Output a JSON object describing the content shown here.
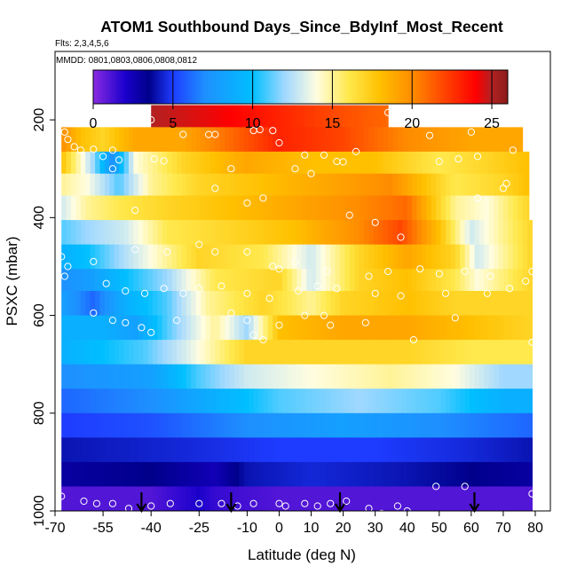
{
  "chart_data": {
    "type": "heatmap",
    "title": "ATOM1 Southbound Days_Since_BdyInf_Most_Recent",
    "subtitle_flights": "Flts: 2,3,4,5,6",
    "subtitle_dates": "MMDD: 0801,0803,0806,0808,0812",
    "xlabel": "Latitude (deg N)",
    "ylabel": "PSXC (mbar)",
    "xlim": [
      -70,
      80
    ],
    "ylim": [
      1000,
      100
    ],
    "x_ticks": [
      -70,
      -55,
      -40,
      -25,
      -10,
      0,
      10,
      20,
      30,
      40,
      50,
      60,
      70,
      80
    ],
    "y_ticks": [
      200,
      400,
      600,
      800,
      1000
    ],
    "colorbar": {
      "min": 0,
      "max": 26,
      "ticks": [
        0,
        5,
        10,
        15,
        20,
        25
      ],
      "stops": [
        {
          "v": 0,
          "c": "#8a2be2"
        },
        {
          "v": 2,
          "c": "#1a00cc"
        },
        {
          "v": 3.5,
          "c": "#00008b"
        },
        {
          "v": 5,
          "c": "#1e3cff"
        },
        {
          "v": 7,
          "c": "#1e90ff"
        },
        {
          "v": 10,
          "c": "#00bfff"
        },
        {
          "v": 12,
          "c": "#a0d8ff"
        },
        {
          "v": 14,
          "c": "#fffde0"
        },
        {
          "v": 16,
          "c": "#ffe94d"
        },
        {
          "v": 18,
          "c": "#ffc000"
        },
        {
          "v": 20,
          "c": "#ff8c00"
        },
        {
          "v": 22,
          "c": "#ff4500"
        },
        {
          "v": 24,
          "c": "#ff0000"
        },
        {
          "v": 25,
          "c": "#b22222"
        },
        {
          "v": 26,
          "c": "#8b1a1a"
        }
      ]
    },
    "layers": [
      {
        "p0": 170,
        "p1": 215,
        "x0": -40,
        "x1": 34,
        "values": [
          [
            -40,
            25
          ],
          [
            -15,
            24
          ],
          [
            0,
            23
          ],
          [
            15,
            22
          ],
          [
            34,
            21
          ]
        ]
      },
      {
        "p0": 215,
        "p1": 265,
        "x0": -68,
        "x1": 76,
        "values": [
          [
            -68,
            20
          ],
          [
            -62,
            18
          ],
          [
            -55,
            17
          ],
          [
            -45,
            19
          ],
          [
            -30,
            19
          ],
          [
            -15,
            21
          ],
          [
            0,
            23
          ],
          [
            20,
            22
          ],
          [
            40,
            20
          ],
          [
            60,
            19
          ],
          [
            76,
            19
          ]
        ]
      },
      {
        "p0": 265,
        "p1": 310,
        "x0": -68,
        "x1": 78,
        "values": [
          [
            -68,
            18
          ],
          [
            -58,
            12
          ],
          [
            -52,
            7
          ],
          [
            -45,
            14
          ],
          [
            -30,
            17
          ],
          [
            -10,
            19
          ],
          [
            10,
            18
          ],
          [
            30,
            18
          ],
          [
            50,
            16
          ],
          [
            65,
            17
          ],
          [
            78,
            18
          ]
        ]
      },
      {
        "p0": 310,
        "p1": 355,
        "x0": -68,
        "x1": 78,
        "values": [
          [
            -68,
            15
          ],
          [
            -60,
            14
          ],
          [
            -50,
            11
          ],
          [
            -40,
            15
          ],
          [
            -25,
            17
          ],
          [
            -5,
            18
          ],
          [
            15,
            19
          ],
          [
            35,
            20
          ],
          [
            55,
            16
          ],
          [
            70,
            17
          ],
          [
            78,
            18
          ]
        ]
      },
      {
        "p0": 355,
        "p1": 405,
        "x0": -68,
        "x1": 78,
        "values": [
          [
            -68,
            13
          ],
          [
            -60,
            15
          ],
          [
            -50,
            16
          ],
          [
            -35,
            17
          ],
          [
            -15,
            18
          ],
          [
            5,
            19
          ],
          [
            25,
            20
          ],
          [
            40,
            21
          ],
          [
            55,
            15
          ],
          [
            65,
            14
          ],
          [
            78,
            17
          ]
        ]
      },
      {
        "p0": 405,
        "p1": 455,
        "x0": -68,
        "x1": 79,
        "values": [
          [
            -68,
            11
          ],
          [
            -60,
            12
          ],
          [
            -48,
            13
          ],
          [
            -35,
            16
          ],
          [
            -15,
            17
          ],
          [
            5,
            18
          ],
          [
            25,
            20
          ],
          [
            38,
            22
          ],
          [
            50,
            18
          ],
          [
            60,
            13
          ],
          [
            79,
            17
          ]
        ]
      },
      {
        "p0": 455,
        "p1": 505,
        "x0": -68,
        "x1": 79,
        "values": [
          [
            -68,
            9
          ],
          [
            -60,
            10
          ],
          [
            -50,
            12
          ],
          [
            -40,
            14
          ],
          [
            -25,
            17
          ],
          [
            -5,
            16
          ],
          [
            10,
            13
          ],
          [
            25,
            17
          ],
          [
            40,
            19
          ],
          [
            55,
            17
          ],
          [
            62,
            13
          ],
          [
            79,
            17
          ]
        ]
      },
      {
        "p0": 505,
        "p1": 550,
        "x0": -68,
        "x1": 79,
        "values": [
          [
            -68,
            7
          ],
          [
            -58,
            8
          ],
          [
            -48,
            10
          ],
          [
            -35,
            12
          ],
          [
            -20,
            16
          ],
          [
            0,
            17
          ],
          [
            10,
            13
          ],
          [
            25,
            17
          ],
          [
            40,
            18
          ],
          [
            55,
            16
          ],
          [
            62,
            14
          ],
          [
            79,
            17
          ]
        ]
      },
      {
        "p0": 550,
        "p1": 600,
        "x0": -68,
        "x1": 79,
        "values": [
          [
            -68,
            8
          ],
          [
            -58,
            6
          ],
          [
            -48,
            9
          ],
          [
            -35,
            11
          ],
          [
            -22,
            15
          ],
          [
            -5,
            17
          ],
          [
            10,
            15
          ],
          [
            20,
            17
          ],
          [
            40,
            18
          ],
          [
            55,
            17
          ],
          [
            79,
            17
          ]
        ]
      },
      {
        "p0": 600,
        "p1": 650,
        "x0": -68,
        "x1": 79,
        "values": [
          [
            -68,
            9
          ],
          [
            -55,
            9
          ],
          [
            -45,
            8
          ],
          [
            -35,
            11
          ],
          [
            -20,
            15
          ],
          [
            -10,
            12
          ],
          [
            0,
            18
          ],
          [
            20,
            19
          ],
          [
            40,
            19
          ],
          [
            60,
            18
          ],
          [
            79,
            17
          ]
        ]
      },
      {
        "p0": 650,
        "p1": 700,
        "x0": -68,
        "x1": 79,
        "values": [
          [
            -68,
            9
          ],
          [
            -55,
            10
          ],
          [
            -42,
            11
          ],
          [
            -30,
            13
          ],
          [
            -20,
            15
          ],
          [
            -10,
            17
          ],
          [
            10,
            17
          ],
          [
            40,
            17
          ],
          [
            60,
            16
          ],
          [
            79,
            16
          ]
        ]
      },
      {
        "p0": 700,
        "p1": 750,
        "x0": -68,
        "x1": 79,
        "values": [
          [
            -68,
            7
          ],
          [
            -40,
            8
          ],
          [
            -25,
            11
          ],
          [
            -10,
            13
          ],
          [
            10,
            14
          ],
          [
            35,
            15
          ],
          [
            55,
            14
          ],
          [
            70,
            12
          ],
          [
            79,
            12
          ]
        ]
      },
      {
        "p0": 750,
        "p1": 800,
        "x0": -68,
        "x1": 79,
        "values": [
          [
            -68,
            6
          ],
          [
            -40,
            7
          ],
          [
            -20,
            9
          ],
          [
            0,
            11
          ],
          [
            25,
            12
          ],
          [
            50,
            11
          ],
          [
            70,
            9
          ],
          [
            79,
            9
          ]
        ]
      },
      {
        "p0": 800,
        "p1": 850,
        "x0": -68,
        "x1": 79,
        "values": [
          [
            -68,
            5
          ],
          [
            -40,
            5.5
          ],
          [
            -10,
            7
          ],
          [
            20,
            8
          ],
          [
            50,
            7
          ],
          [
            79,
            6
          ]
        ]
      },
      {
        "p0": 850,
        "p1": 900,
        "x0": -68,
        "x1": 79,
        "values": [
          [
            -68,
            4
          ],
          [
            -30,
            4.5
          ],
          [
            0,
            5
          ],
          [
            30,
            5
          ],
          [
            60,
            4.5
          ],
          [
            79,
            4
          ]
        ]
      },
      {
        "p0": 900,
        "p1": 950,
        "x0": -68,
        "x1": 79,
        "values": [
          [
            -68,
            3
          ],
          [
            -40,
            3.5
          ],
          [
            -20,
            2.5
          ],
          [
            -10,
            4
          ],
          [
            10,
            4.5
          ],
          [
            40,
            4
          ],
          [
            60,
            3.5
          ],
          [
            79,
            3
          ]
        ]
      },
      {
        "p0": 950,
        "p1": 1000,
        "x0": -68,
        "x1": 79,
        "values": [
          [
            -68,
            1
          ],
          [
            -40,
            1
          ],
          [
            -25,
            2
          ],
          [
            -20,
            1.5
          ],
          [
            0,
            1
          ],
          [
            40,
            1
          ],
          [
            79,
            1
          ]
        ]
      }
    ],
    "arrows_lat": [
      -43,
      -15,
      19,
      61
    ],
    "samples": [
      [
        -67,
        225
      ],
      [
        -66,
        240
      ],
      [
        -64,
        255
      ],
      [
        -62,
        262
      ],
      [
        -58,
        260
      ],
      [
        -52,
        262
      ],
      [
        -40,
        200
      ],
      [
        -30,
        230
      ],
      [
        -22,
        230
      ],
      [
        -20,
        230
      ],
      [
        -8,
        222
      ],
      [
        -6,
        220
      ],
      [
        -2,
        222
      ],
      [
        0,
        247
      ],
      [
        8,
        272
      ],
      [
        14,
        272
      ],
      [
        18,
        285
      ],
      [
        24,
        265
      ],
      [
        34,
        185
      ],
      [
        47,
        232
      ],
      [
        60,
        225
      ],
      [
        73,
        262
      ],
      [
        -55,
        275
      ],
      [
        -50,
        282
      ],
      [
        -52,
        300
      ],
      [
        -39,
        280
      ],
      [
        -36,
        284
      ],
      [
        -20,
        340
      ],
      [
        -15,
        300
      ],
      [
        -5,
        360
      ],
      [
        5,
        300
      ],
      [
        10,
        310
      ],
      [
        20,
        286
      ],
      [
        50,
        285
      ],
      [
        56,
        280
      ],
      [
        62,
        275
      ],
      [
        71,
        330
      ],
      [
        -45,
        385
      ],
      [
        -10,
        370
      ],
      [
        22,
        395
      ],
      [
        30,
        410
      ],
      [
        38,
        440
      ],
      [
        62,
        360
      ],
      [
        70,
        340
      ],
      [
        -68,
        480
      ],
      [
        -66,
        500
      ],
      [
        -58,
        490
      ],
      [
        -45,
        465
      ],
      [
        -35,
        470
      ],
      [
        -25,
        455
      ],
      [
        -20,
        470
      ],
      [
        -10,
        470
      ],
      [
        -2,
        500
      ],
      [
        0,
        505
      ],
      [
        5,
        490
      ],
      [
        15,
        510
      ],
      [
        28,
        520
      ],
      [
        34,
        510
      ],
      [
        44,
        505
      ],
      [
        50,
        515
      ],
      [
        58,
        510
      ],
      [
        66,
        520
      ],
      [
        77,
        530
      ],
      [
        79,
        510
      ],
      [
        -67,
        520
      ],
      [
        -54,
        535
      ],
      [
        -48,
        550
      ],
      [
        -42,
        555
      ],
      [
        -36,
        545
      ],
      [
        -30,
        555
      ],
      [
        -25,
        545
      ],
      [
        -18,
        540
      ],
      [
        -10,
        555
      ],
      [
        -3,
        565
      ],
      [
        6,
        550
      ],
      [
        12,
        540
      ],
      [
        18,
        545
      ],
      [
        30,
        555
      ],
      [
        38,
        560
      ],
      [
        52,
        555
      ],
      [
        65,
        555
      ],
      [
        72,
        545
      ],
      [
        -58,
        595
      ],
      [
        -52,
        610
      ],
      [
        -48,
        615
      ],
      [
        -43,
        625
      ],
      [
        -40,
        635
      ],
      [
        -32,
        610
      ],
      [
        -15,
        595
      ],
      [
        -10,
        610
      ],
      [
        -8,
        640
      ],
      [
        -5,
        650
      ],
      [
        0,
        620
      ],
      [
        8,
        600
      ],
      [
        14,
        600
      ],
      [
        16,
        620
      ],
      [
        27,
        615
      ],
      [
        42,
        650
      ],
      [
        55,
        605
      ],
      [
        79,
        655
      ],
      [
        -68,
        970
      ],
      [
        -61,
        980
      ],
      [
        -57,
        985
      ],
      [
        -52,
        985
      ],
      [
        -47,
        995
      ],
      [
        -40,
        990
      ],
      [
        -34,
        985
      ],
      [
        -25,
        985
      ],
      [
        -18,
        985
      ],
      [
        -13,
        990
      ],
      [
        -8,
        985
      ],
      [
        0,
        985
      ],
      [
        2,
        990
      ],
      [
        8,
        985
      ],
      [
        12,
        990
      ],
      [
        16,
        985
      ],
      [
        21,
        980
      ],
      [
        28,
        995
      ],
      [
        32,
        1005
      ],
      [
        37,
        990
      ],
      [
        40,
        1000
      ],
      [
        49,
        950
      ],
      [
        58,
        950
      ],
      [
        79,
        965
      ]
    ]
  }
}
